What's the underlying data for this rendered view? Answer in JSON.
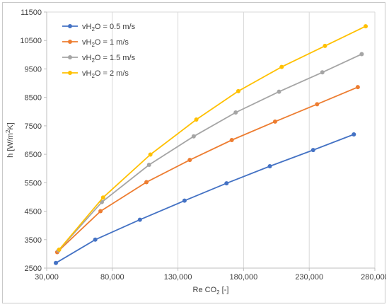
{
  "chart_data": {
    "type": "line",
    "xlabel_parts": [
      "Re CO",
      "2",
      " [-]"
    ],
    "ylabel_parts": [
      "h  [W/m",
      "2",
      "K]"
    ],
    "xlim": [
      30000,
      280000
    ],
    "ylim": [
      2500,
      11500
    ],
    "x_ticks": [
      30000,
      80000,
      130000,
      180000,
      230000,
      280000
    ],
    "x_tick_labels": [
      "30,000",
      "80,000",
      "130,000",
      "180,000",
      "230,000",
      "280,000"
    ],
    "y_ticks": [
      2500,
      3500,
      4500,
      5500,
      6500,
      7500,
      8500,
      9500,
      10500,
      11500
    ],
    "y_tick_labels": [
      "2500",
      "3500",
      "4500",
      "5500",
      "6500",
      "7500",
      "8500",
      "9500",
      "10500",
      "11500"
    ],
    "grid": "vertical",
    "legend_position": "top-left",
    "series": [
      {
        "name_parts": [
          "vH",
          "2",
          "O = 0.5 m/s"
        ],
        "color": "#4472C4",
        "x": [
          37000,
          67000,
          101000,
          135000,
          167000,
          200000,
          233000,
          264000
        ],
        "y": [
          2680,
          3500,
          4200,
          4870,
          5480,
          6080,
          6650,
          7200
        ]
      },
      {
        "name_parts": [
          "vH",
          "2",
          "O = 1 m/s"
        ],
        "color": "#ED7D31",
        "x": [
          38000,
          71000,
          106000,
          139000,
          171000,
          204000,
          236000,
          267000
        ],
        "y": [
          3060,
          4500,
          5520,
          6300,
          7000,
          7650,
          8260,
          8860
        ]
      },
      {
        "name_parts": [
          "vH",
          "2",
          "O = 1.5 m/s"
        ],
        "color": "#A5A5A5",
        "x": [
          39000,
          72000,
          108000,
          142000,
          174000,
          207000,
          240000,
          270000
        ],
        "y": [
          3120,
          4820,
          6130,
          7130,
          7970,
          8700,
          9380,
          10020
        ]
      },
      {
        "name_parts": [
          "vH",
          "2",
          "O = 2 m/s"
        ],
        "color": "#FFC000",
        "x": [
          39500,
          73000,
          109000,
          144000,
          176000,
          209000,
          242000,
          273000
        ],
        "y": [
          3150,
          4980,
          6490,
          7720,
          8720,
          9570,
          10310,
          11000
        ]
      }
    ]
  }
}
